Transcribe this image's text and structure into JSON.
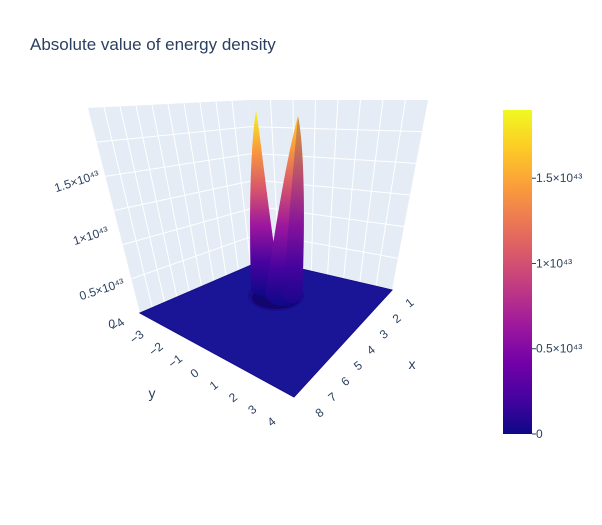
{
  "chart_data": {
    "type": "surface",
    "title": "Absolute value of energy density",
    "axes": {
      "x": {
        "label": "x",
        "range": [
          1,
          8
        ],
        "ticks": [
          "1",
          "2",
          "3",
          "4",
          "5",
          "6",
          "7",
          "8"
        ]
      },
      "y": {
        "label": "y",
        "range": [
          -4,
          4
        ],
        "ticks": [
          "−4",
          "−3",
          "−2",
          "−1",
          "0",
          "1",
          "2",
          "3",
          "4"
        ]
      },
      "z": {
        "label": "",
        "ticks": [
          "0",
          "0.5×10⁴³",
          "1×10⁴³",
          "1.5×10⁴³"
        ]
      }
    },
    "colorbar": {
      "ticks": [
        "0",
        "0.5×10⁴³",
        "1×10⁴³",
        "1.5×10⁴³"
      ],
      "values": [
        0,
        5e+42,
        1e+43,
        1.5e+43
      ],
      "max": 1.9e+43
    },
    "colorscale": "plasma",
    "colors": [
      "#0d0887",
      "#46039f",
      "#7201a8",
      "#9c179e",
      "#bd3786",
      "#d8576b",
      "#ed7953",
      "#fb9f3a",
      "#fdca26",
      "#f0f921"
    ],
    "peaks": [
      {
        "value": 1.9e+43
      },
      {
        "value": 1.75e+43
      }
    ],
    "grid": true,
    "background": "#e5ecf6"
  }
}
